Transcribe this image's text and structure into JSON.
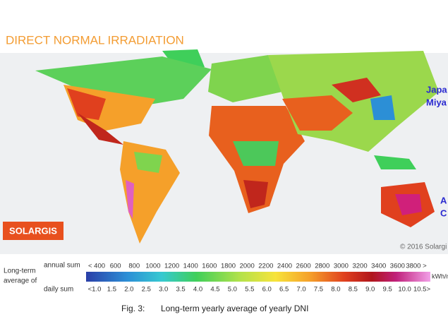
{
  "header": {
    "title": "DIRECT NORMAL IRRADIATION"
  },
  "map": {
    "labels": [
      "Japa",
      "Miya",
      "A",
      "C"
    ],
    "logo": "SOLARGIS",
    "copyright": "© 2016 Solargi"
  },
  "legend": {
    "title": [
      "Long-term",
      "average of"
    ],
    "annual_label": "annual sum",
    "daily_label": "daily sum",
    "annual_ticks": [
      "< 400",
      "600",
      "800",
      "1000",
      "1200",
      "1400",
      "1600",
      "1800",
      "2000",
      "2200",
      "2400",
      "2600",
      "2800",
      "3000",
      "3200",
      "3400",
      "3600",
      "3800 >"
    ],
    "daily_ticks": [
      "<1.0",
      "1.5",
      "2.0",
      "2.5",
      "3.0",
      "3.5",
      "4.0",
      "4.5",
      "5.0",
      "5.5",
      "6.0",
      "6.5",
      "7.0",
      "7.5",
      "8.0",
      "8.5",
      "9.0",
      "9.5",
      "10.0",
      "10.5>"
    ],
    "unit": "kWh/m"
  },
  "caption": {
    "number": "Fig. 3:",
    "text": "Long-term yearly average of yearly DNI"
  }
}
